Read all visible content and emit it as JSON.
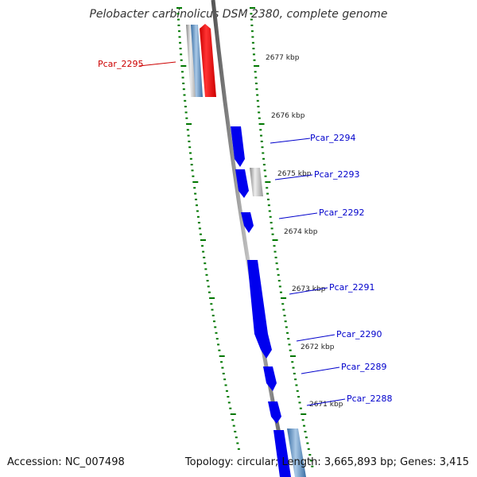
{
  "title": "Pelobacter carbinolicus DSM 2380, complete genome",
  "footer": {
    "accession": "Accession: NC_007498",
    "summary": "Topology: circular; Length: 3,665,893 bp; Genes: 3,415"
  },
  "colors": {
    "gene_forward": "#0000ee",
    "gene_highlight": "#ff0000",
    "gene_gray": "#c0c0c0",
    "gene_steel": "#5b8fc0",
    "label_blue": "#0000cc",
    "label_red": "#cc0000",
    "tick_green": "#007700",
    "backbone": "#777777"
  },
  "kbp_ticks": [
    {
      "label": "2677 kbp"
    },
    {
      "label": "2676 kbp"
    },
    {
      "label": "2675 kbp"
    },
    {
      "label": "2674 kbp"
    },
    {
      "label": "2673 kbp"
    },
    {
      "label": "2672 kbp"
    },
    {
      "label": "2671 kbp"
    }
  ],
  "genes": [
    {
      "label": "Pcar_2295",
      "highlighted": true
    },
    {
      "label": "Pcar_2294",
      "highlighted": false
    },
    {
      "label": "Pcar_2293",
      "highlighted": false
    },
    {
      "label": "Pcar_2292",
      "highlighted": false
    },
    {
      "label": "Pcar_2291",
      "highlighted": false
    },
    {
      "label": "Pcar_2290",
      "highlighted": false
    },
    {
      "label": "Pcar_2289",
      "highlighted": false
    },
    {
      "label": "Pcar_2288",
      "highlighted": false
    }
  ]
}
